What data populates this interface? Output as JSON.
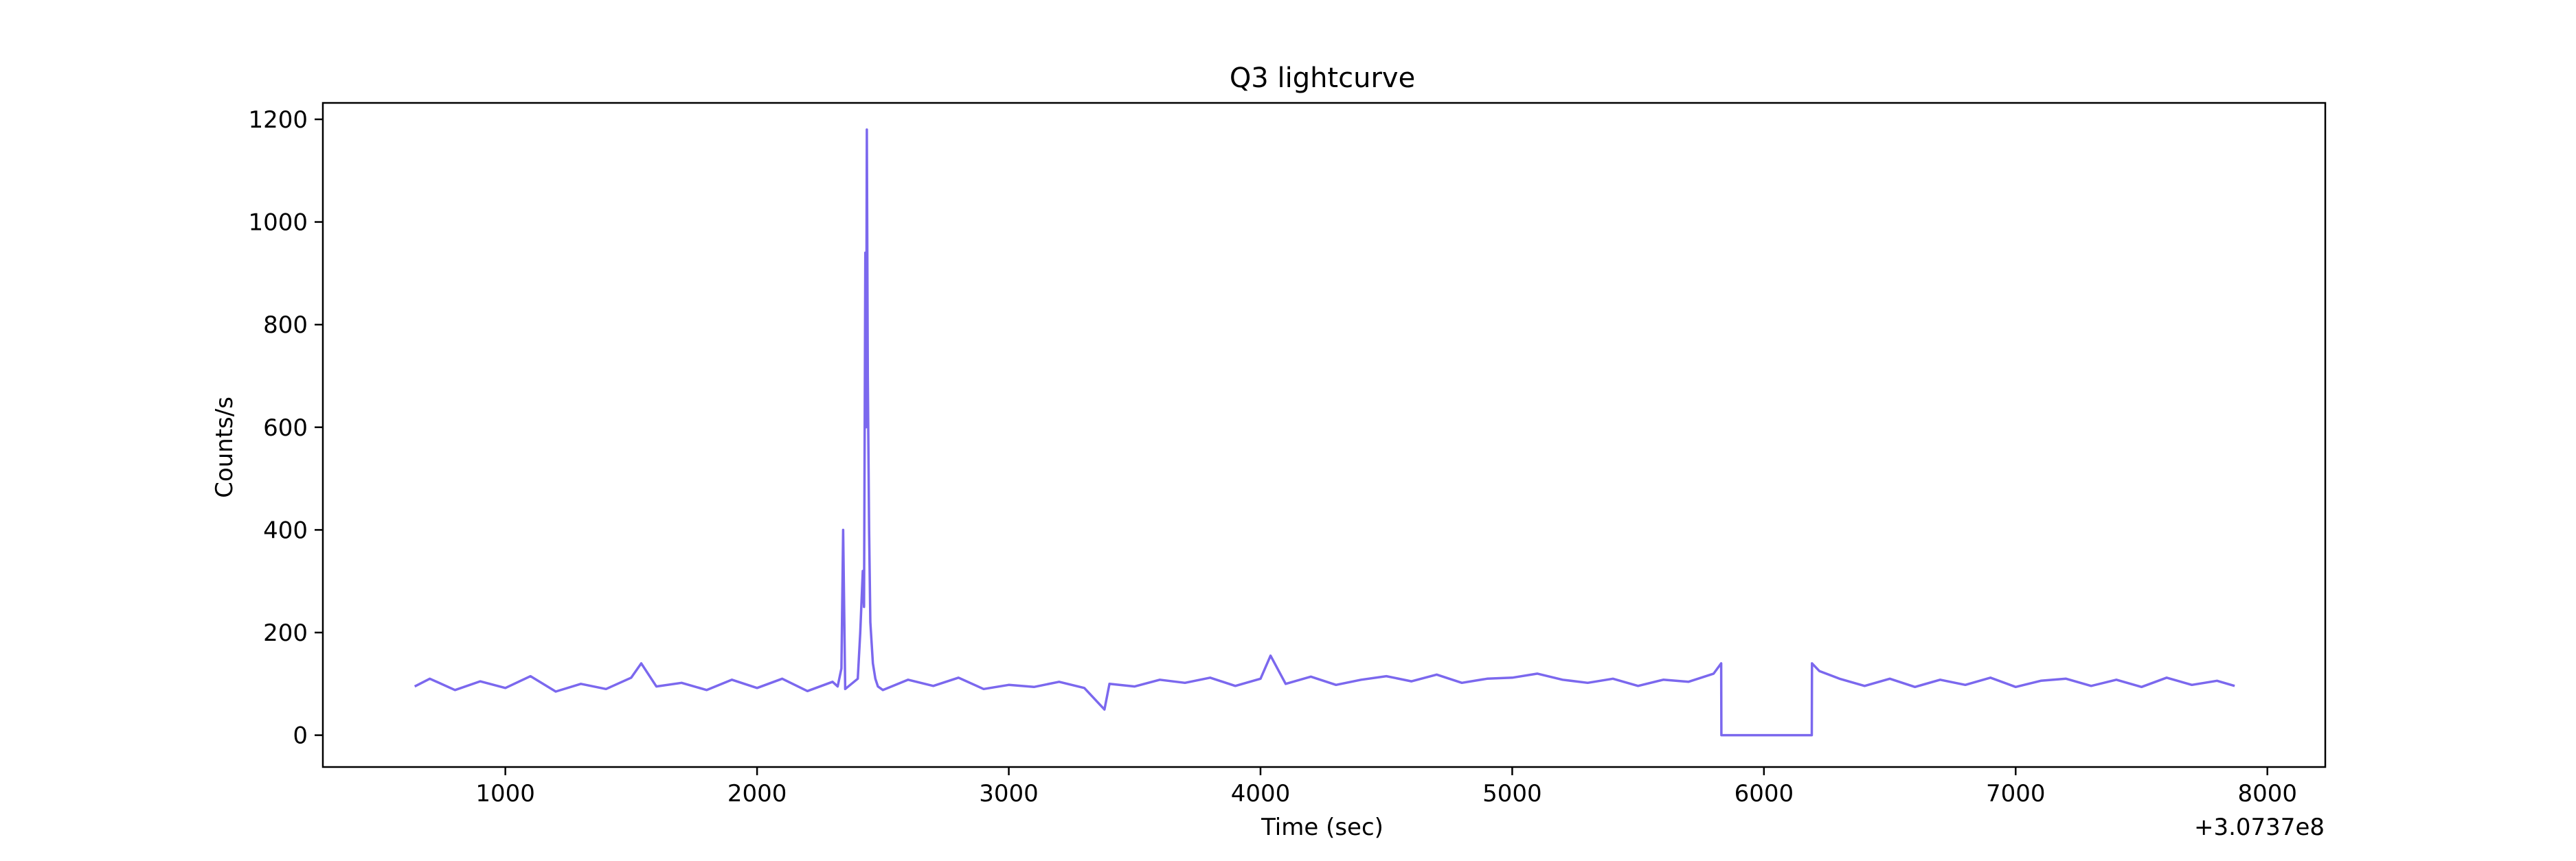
{
  "chart_data": {
    "type": "line",
    "title": "Q3 lightcurve",
    "xlabel": "Time (sec)",
    "ylabel": "Counts/s",
    "x_offset_label": "+3.0737e8",
    "xlim": [
      275,
      8230
    ],
    "ylim": [
      -62,
      1232
    ],
    "x_ticks": [
      1000,
      2000,
      3000,
      4000,
      5000,
      6000,
      7000,
      8000
    ],
    "y_ticks": [
      0,
      200,
      400,
      600,
      800,
      1000,
      1200
    ],
    "grid": false,
    "legend": "none",
    "line_color": "#7b68ee",
    "series": [
      {
        "x": [
          640,
          700,
          800,
          900,
          1000,
          1100,
          1200,
          1300,
          1400,
          1500,
          1540,
          1600,
          1700,
          1800,
          1900,
          2000,
          2100,
          2200,
          2300,
          2320,
          2335,
          2342,
          2350,
          2370,
          2400,
          2410,
          2420,
          2425,
          2430,
          2433,
          2436,
          2440,
          2445,
          2450,
          2460,
          2470,
          2480,
          2500,
          2600,
          2700,
          2800,
          2900,
          3000,
          3100,
          3200,
          3300,
          3380,
          3400,
          3500,
          3600,
          3700,
          3800,
          3900,
          4000,
          4040,
          4100,
          4200,
          4300,
          4400,
          4500,
          4600,
          4700,
          4800,
          4900,
          5000,
          5100,
          5200,
          5300,
          5400,
          5500,
          5600,
          5700,
          5800,
          5830,
          5831,
          6190,
          6191,
          6220,
          6300,
          6400,
          6500,
          6600,
          6700,
          6800,
          6900,
          7000,
          7100,
          7200,
          7300,
          7400,
          7500,
          7600,
          7700,
          7800,
          7870
        ],
        "y": [
          95,
          110,
          88,
          105,
          92,
          115,
          85,
          100,
          90,
          112,
          140,
          95,
          102,
          88,
          108,
          92,
          110,
          86,
          104,
          95,
          130,
          400,
          90,
          98,
          110,
          200,
          320,
          250,
          940,
          600,
          1180,
          700,
          400,
          220,
          140,
          110,
          95,
          88,
          108,
          96,
          112,
          90,
          98,
          94,
          104,
          92,
          50,
          100,
          95,
          108,
          102,
          112,
          96,
          110,
          155,
          100,
          114,
          98,
          108,
          115,
          105,
          118,
          102,
          110,
          112,
          120,
          108,
          102,
          110,
          96,
          108,
          104,
          120,
          140,
          0,
          0,
          140,
          125,
          110,
          96,
          110,
          94,
          108,
          98,
          112,
          94,
          106,
          110,
          96,
          108,
          94,
          112,
          98,
          106,
          96
        ]
      }
    ]
  }
}
